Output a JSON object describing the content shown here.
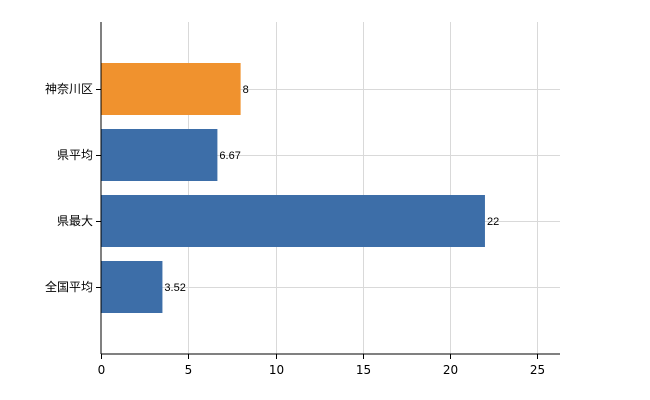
{
  "chart_data": {
    "type": "bar",
    "orientation": "horizontal",
    "categories": [
      "神奈川区",
      "県平均",
      "県最大",
      "全国平均"
    ],
    "values": [
      8,
      6.67,
      22,
      3.52
    ],
    "value_labels": [
      "8",
      "6.67",
      "22",
      "3.52"
    ],
    "highlight_index": 0,
    "colors": {
      "highlight": "#f0922e",
      "default": "#3d6ea8"
    },
    "xlim": [
      0,
      26.3
    ],
    "xticks": [
      0,
      5,
      10,
      15,
      20,
      25
    ],
    "xtick_labels": [
      "0",
      "5",
      "10",
      "15",
      "20",
      "25"
    ],
    "grid": true,
    "legend": "none"
  }
}
